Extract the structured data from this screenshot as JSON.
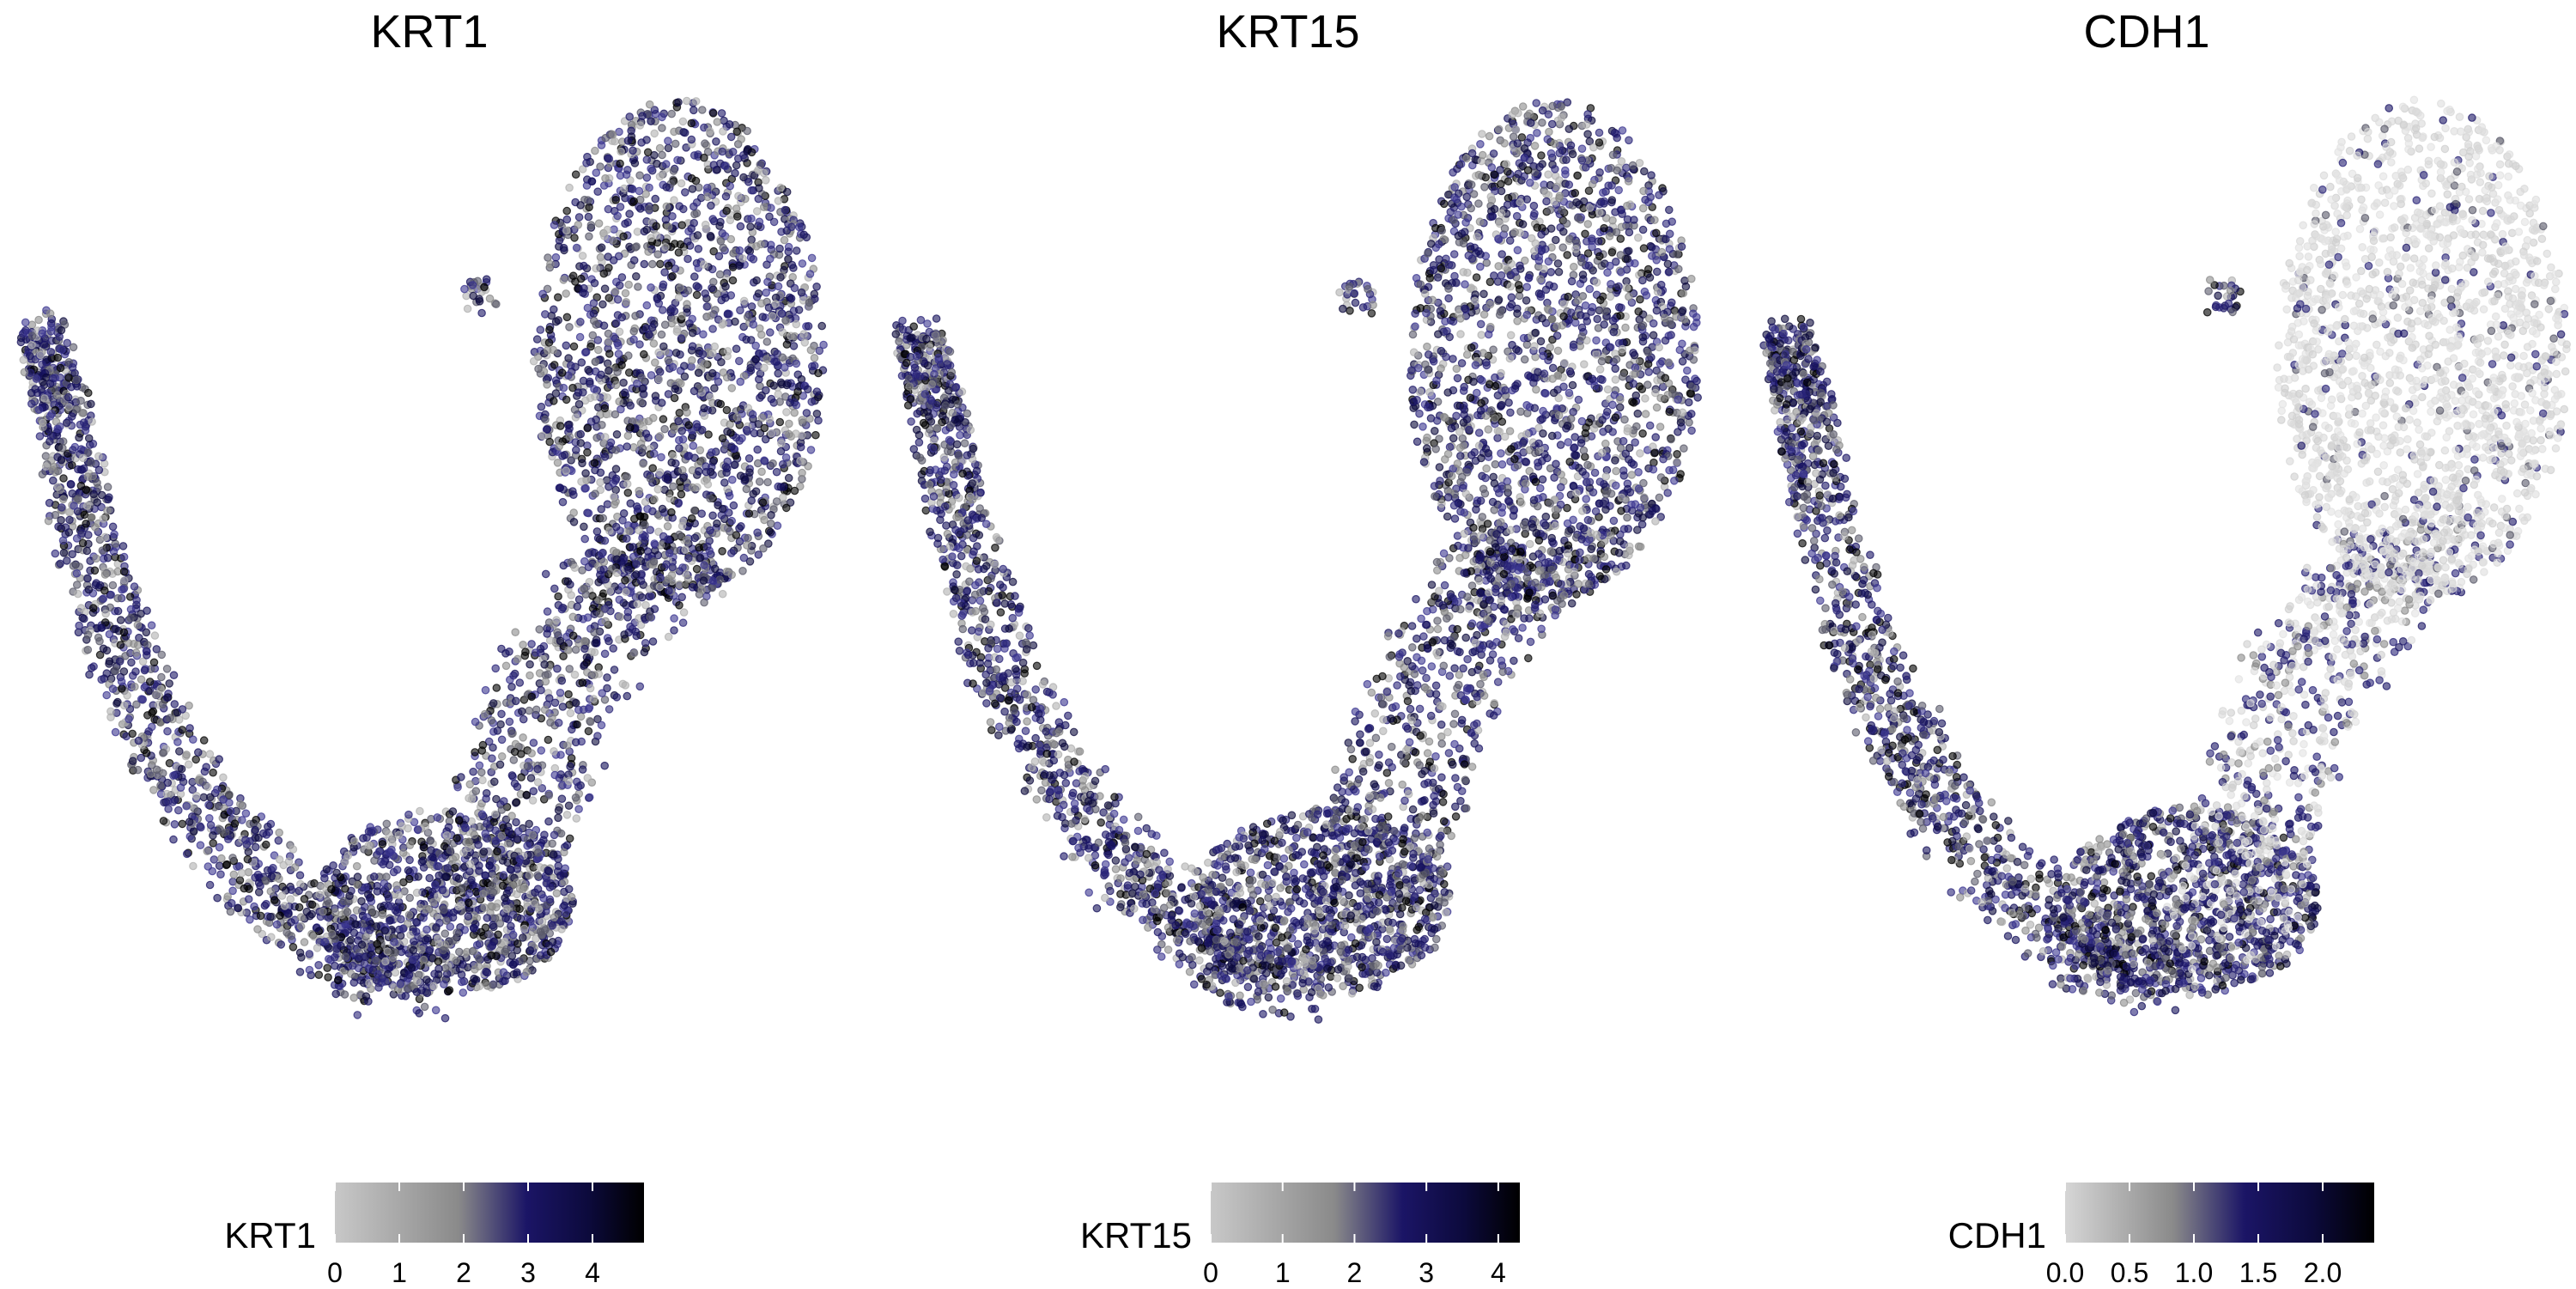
{
  "chart_data": [
    {
      "type": "scatter",
      "title": "KRT1",
      "legend": {
        "title": "KRT1",
        "position": "bottom",
        "ticks": [
          "0",
          "1",
          "2",
          "3",
          "4"
        ],
        "range": [
          0,
          4.8
        ]
      },
      "palette": [
        "#c8c8c8",
        "#8a8a8a",
        "#1b1566",
        "#0c0a3c",
        "#000000"
      ],
      "point_color_mode": "dense"
    },
    {
      "type": "scatter",
      "title": "KRT15",
      "legend": {
        "title": "KRT15",
        "position": "bottom",
        "ticks": [
          "0",
          "1",
          "2",
          "3",
          "4"
        ],
        "range": [
          0,
          4.3
        ]
      },
      "palette": [
        "#c8c8c8",
        "#8a8a8a",
        "#1b1566",
        "#0c0a3c",
        "#000000"
      ],
      "point_color_mode": "dense"
    },
    {
      "type": "scatter",
      "title": "CDH1",
      "legend": {
        "title": "CDH1",
        "position": "bottom",
        "ticks": [
          "0.0",
          "0.5",
          "1.0",
          "1.5",
          "2.0"
        ],
        "range": [
          0,
          2.4
        ]
      },
      "palette": [
        "#d6d6d6",
        "#8a8a8a",
        "#1b1566",
        "#0c0a3c",
        "#000000"
      ],
      "point_color_mode": "sparse-top"
    }
  ]
}
